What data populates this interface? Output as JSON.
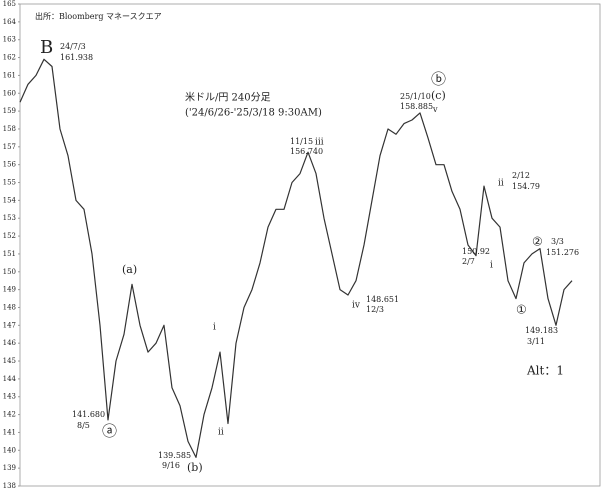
{
  "chart_data": {
    "type": "line",
    "title": "米ドル/円 240分足",
    "subtitle": "('24/6/26-'25/3/18 9:30AM)",
    "source": "出所：Bloomberg マネースクエア",
    "color": "#333333",
    "values": [
      159.5,
      160.5,
      161,
      161.9,
      161.5,
      158,
      156.5,
      154,
      153.5,
      151,
      147,
      141.7,
      145,
      146.5,
      149.3,
      147,
      145.5,
      146,
      147,
      143.5,
      142.5,
      140.5,
      139.6,
      142,
      143.5,
      145.5,
      141.5,
      146,
      148,
      149,
      150.5,
      152.5,
      153.5,
      153.5,
      155,
      155.5,
      156.7,
      155.5,
      153,
      151,
      149,
      148.7,
      149.5,
      151.5,
      154,
      156.5,
      158,
      157.7,
      158.3,
      158.5,
      158.9,
      157.5,
      156,
      156,
      154.5,
      153.5,
      151.5,
      150.9,
      154.8,
      153,
      152.5,
      149.5,
      148.5,
      150.5,
      151,
      151.3,
      148.5,
      147,
      149,
      149.5
    ],
    "ylim": [
      138,
      165
    ],
    "yticks": [
      138,
      139,
      140,
      141,
      142,
      143,
      144,
      145,
      146,
      147,
      148,
      149,
      150,
      151,
      152,
      153,
      154,
      155,
      156,
      157,
      158,
      159,
      160,
      161,
      162,
      163,
      164,
      165
    ],
    "annotations": [
      "B",
      "24/7/3",
      "161.938",
      "25/1/10",
      "158.885",
      "ⓑ",
      "(c)",
      "v",
      "11/15",
      "156.740",
      "iii",
      "ii",
      "2/12",
      "154.79",
      "(a)",
      "iv",
      "148.651",
      "12/3",
      "150.92",
      "2/7",
      "i",
      "②",
      "3/3",
      "151.276",
      "①",
      "149.183",
      "3/11",
      "Alt：1",
      "i",
      "ii",
      "141.680",
      "8/5",
      "ⓐ",
      "139.585",
      "9/16",
      "(b)"
    ]
  }
}
